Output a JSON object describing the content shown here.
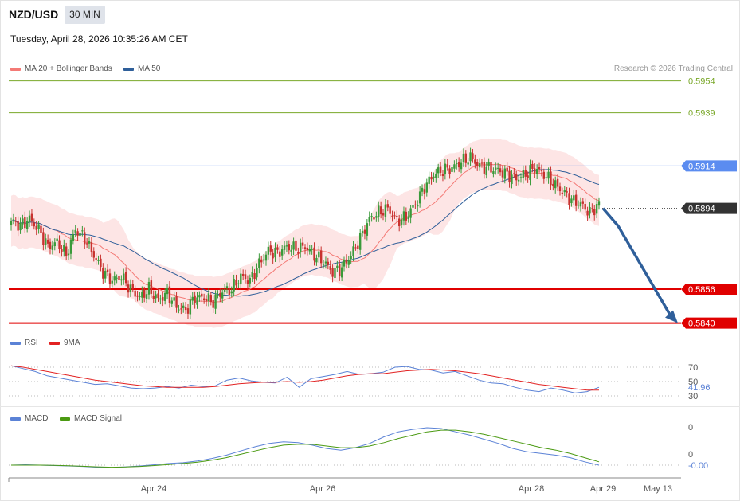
{
  "header": {
    "symbol": "NZD/USD",
    "timeframe": "30 MIN",
    "datetime": "Tuesday, April 28, 2026 10:35:26 AM CET",
    "credit": "Research © 2026 Trading Central"
  },
  "colors": {
    "ma20": "#f47a76",
    "ma50": "#2f5f9a",
    "bb_fill": "#fde0e0",
    "candle_up": "#3a9a3a",
    "candle_down": "#c8322f",
    "target_line": "#7aa82a",
    "pivot_line": "#5b8cf0",
    "support_line": "#e00000",
    "arrow": "#2f5f9a",
    "rsi": "#5b82d6",
    "rsi_ma": "#e22222",
    "macd": "#5b82d6",
    "macd_signal": "#4b9a12"
  },
  "chart_data": [
    {
      "type": "candlestick",
      "panel": "price",
      "legend": [
        {
          "label": "MA 20 + Bollinger Bands",
          "color": "#f47a76"
        },
        {
          "label": "MA 50",
          "color": "#2f5f9a"
        }
      ],
      "ylim": [
        0.58365,
        0.59565
      ],
      "x_ticks": [
        "Apr 24",
        "Apr 26",
        "Apr 28",
        "Apr 29",
        "May 13"
      ],
      "levels": [
        {
          "value": 0.5954,
          "label": "0.5954",
          "kind": "target"
        },
        {
          "value": 0.5939,
          "label": "0.5939",
          "kind": "target"
        },
        {
          "value": 0.5914,
          "label": "0.5914",
          "kind": "pivot"
        },
        {
          "value": 0.5856,
          "label": "0.5856",
          "kind": "support"
        },
        {
          "value": 0.584,
          "label": "0.5840",
          "kind": "support"
        }
      ],
      "last_price": {
        "value": 0.5894,
        "label": "0.5894"
      },
      "forecast": {
        "direction": "down",
        "from": 0.5894,
        "to": 0.584
      },
      "series_close_anchors": [
        [
          0,
          0.5888
        ],
        [
          4,
          0.5886
        ],
        [
          8,
          0.5889
        ],
        [
          12,
          0.5884
        ],
        [
          16,
          0.5876
        ],
        [
          20,
          0.5878
        ],
        [
          24,
          0.5872
        ],
        [
          28,
          0.5884
        ],
        [
          32,
          0.588
        ],
        [
          36,
          0.5872
        ],
        [
          40,
          0.5864
        ],
        [
          44,
          0.586
        ],
        [
          48,
          0.5862
        ],
        [
          52,
          0.5856
        ],
        [
          56,
          0.5852
        ],
        [
          60,
          0.5856
        ],
        [
          64,
          0.5851
        ],
        [
          68,
          0.5854
        ],
        [
          72,
          0.5848
        ],
        [
          76,
          0.5846
        ],
        [
          80,
          0.5852
        ],
        [
          84,
          0.5852
        ],
        [
          88,
          0.585
        ],
        [
          92,
          0.5855
        ],
        [
          96,
          0.5856
        ],
        [
          100,
          0.5862
        ],
        [
          104,
          0.586
        ],
        [
          108,
          0.5868
        ],
        [
          112,
          0.5874
        ],
        [
          116,
          0.5873
        ],
        [
          120,
          0.5876
        ],
        [
          124,
          0.5875
        ],
        [
          128,
          0.5876
        ],
        [
          132,
          0.5872
        ],
        [
          136,
          0.5869
        ],
        [
          140,
          0.5864
        ],
        [
          144,
          0.5866
        ],
        [
          148,
          0.5872
        ],
        [
          152,
          0.588
        ],
        [
          156,
          0.5889
        ],
        [
          160,
          0.5892
        ],
        [
          164,
          0.5894
        ],
        [
          168,
          0.5888
        ],
        [
          172,
          0.589
        ],
        [
          176,
          0.5896
        ],
        [
          180,
          0.5904
        ],
        [
          184,
          0.591
        ],
        [
          188,
          0.5912
        ],
        [
          192,
          0.5913
        ],
        [
          196,
          0.5916
        ],
        [
          200,
          0.5918
        ],
        [
          204,
          0.5914
        ],
        [
          208,
          0.5913
        ],
        [
          212,
          0.5912
        ],
        [
          216,
          0.591
        ],
        [
          220,
          0.5908
        ],
        [
          224,
          0.591
        ],
        [
          228,
          0.5913
        ],
        [
          232,
          0.591
        ],
        [
          236,
          0.5906
        ],
        [
          240,
          0.5902
        ],
        [
          244,
          0.5898
        ],
        [
          248,
          0.5896
        ],
        [
          252,
          0.5892
        ],
        [
          256,
          0.5896
        ]
      ]
    },
    {
      "type": "line",
      "panel": "rsi",
      "legend": [
        {
          "label": "RSI",
          "color": "#5b82d6"
        },
        {
          "label": "9MA",
          "color": "#e22222"
        }
      ],
      "y_ticks": [
        "70",
        "50",
        "30"
      ],
      "last_value": "41.96",
      "series": [
        {
          "name": "RSI",
          "values": [
            72,
            68,
            64,
            58,
            55,
            52,
            49,
            46,
            47,
            44,
            41,
            40,
            41,
            43,
            41,
            45,
            43,
            44,
            52,
            55,
            51,
            49,
            48,
            56,
            42,
            54,
            57,
            60,
            64,
            60,
            61,
            63,
            70,
            71,
            67,
            66,
            62,
            64,
            58,
            52,
            48,
            47,
            42,
            38,
            36,
            41,
            38,
            34,
            36,
            42
          ]
        },
        {
          "name": "9MA",
          "values": [
            72,
            70,
            67,
            64,
            61,
            58,
            55,
            52,
            50,
            48,
            46,
            44,
            43,
            42,
            42,
            42,
            42,
            43,
            45,
            47,
            48,
            49,
            49,
            50,
            49,
            50,
            52,
            55,
            58,
            60,
            61,
            61,
            63,
            65,
            66,
            67,
            66,
            65,
            63,
            61,
            58,
            55,
            52,
            49,
            46,
            44,
            42,
            40,
            38,
            38
          ]
        }
      ]
    },
    {
      "type": "line",
      "panel": "macd",
      "legend": [
        {
          "label": "MACD",
          "color": "#5b82d6"
        },
        {
          "label": "MACD Signal",
          "color": "#4b9a12"
        }
      ],
      "y_ticks": [
        "0",
        "0"
      ],
      "last_value": "-0.00",
      "series": [
        {
          "name": "MACD",
          "values": [
            0,
            0.5,
            0,
            -0.5,
            -1,
            -1.5,
            -2.5,
            -3,
            -2,
            -1,
            0.5,
            2,
            3,
            5,
            8,
            12,
            17,
            22,
            26,
            28,
            27,
            24,
            20,
            18,
            21,
            26,
            34,
            40,
            43,
            45,
            44,
            40,
            36,
            31,
            26,
            20,
            16,
            14,
            12,
            9,
            4,
            0
          ]
        },
        {
          "name": "MACD Signal",
          "values": [
            0,
            0,
            0,
            -0.3,
            -0.8,
            -1.3,
            -2,
            -2.5,
            -2.2,
            -1.5,
            -0.5,
            0.8,
            2,
            3.5,
            6,
            9,
            13,
            17,
            21,
            24,
            25,
            25,
            23,
            21,
            21,
            23,
            27,
            32,
            36,
            40,
            42,
            42,
            40,
            37,
            33,
            29,
            25,
            21,
            18,
            14,
            9,
            4
          ]
        }
      ]
    }
  ]
}
